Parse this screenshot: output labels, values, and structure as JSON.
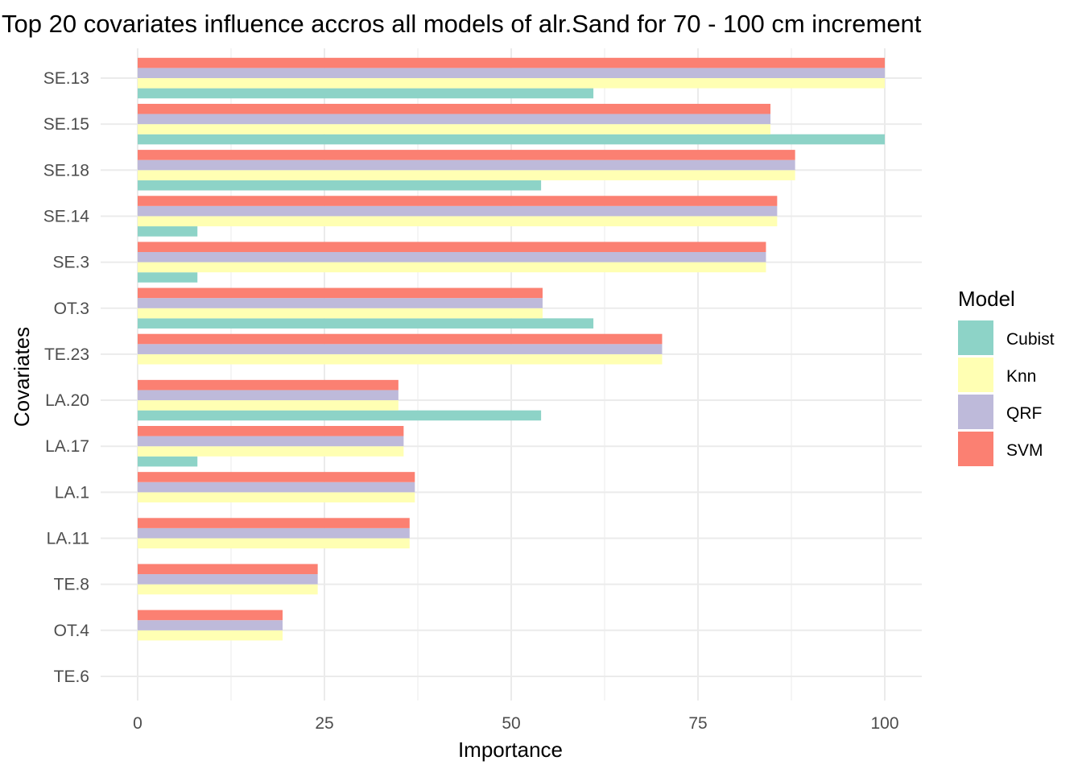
{
  "chart_data": {
    "type": "bar",
    "orientation": "horizontal",
    "title": "Top 20 covariates influence accros all models of alr.Sand for 70 - 100 cm increment",
    "xlabel": "Importance",
    "ylabel": "Covariates",
    "xlim": [
      0,
      105
    ],
    "xticks": [
      0,
      25,
      50,
      75,
      100
    ],
    "grid": true,
    "legend": {
      "title": "Model",
      "position": "right"
    },
    "categories": [
      "SE.13",
      "SE.15",
      "SE.18",
      "SE.14",
      "SE.3",
      "OT.3",
      "TE.23",
      "LA.20",
      "LA.17",
      "LA.1",
      "LA.11",
      "TE.8",
      "OT.4",
      "TE.6"
    ],
    "series": [
      {
        "name": "Cubist",
        "color": "#8DD3C7",
        "values": [
          61,
          100,
          54,
          8,
          8,
          61,
          0,
          54,
          8,
          0,
          0,
          0,
          0,
          0
        ]
      },
      {
        "name": "Knn",
        "color": "#FFFFB3",
        "values": [
          100,
          84.7,
          88,
          85.6,
          84.1,
          54.2,
          70.2,
          34.9,
          35.6,
          37.1,
          36.4,
          24.1,
          19.4,
          0
        ]
      },
      {
        "name": "QRF",
        "color": "#BEBADA",
        "values": [
          100,
          84.7,
          88,
          85.6,
          84.1,
          54.2,
          70.2,
          34.9,
          35.6,
          37.1,
          36.4,
          24.1,
          19.4,
          0
        ]
      },
      {
        "name": "SVM",
        "color": "#FB8072",
        "values": [
          100,
          84.7,
          88,
          85.6,
          84.1,
          54.2,
          70.2,
          34.9,
          35.6,
          37.1,
          36.4,
          24.1,
          19.4,
          0
        ]
      }
    ]
  }
}
